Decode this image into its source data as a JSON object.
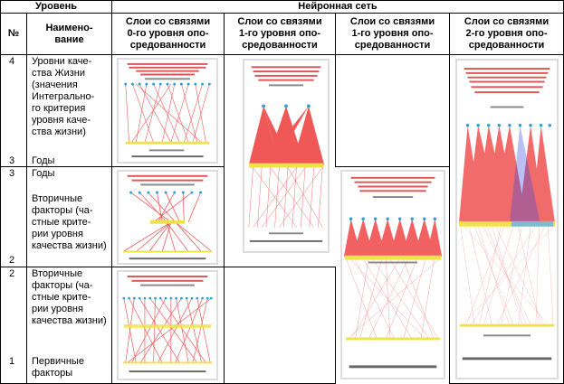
{
  "header": {
    "level": "Уровень",
    "no": "№",
    "name": "Наимено-\nвание",
    "network": "Нейронная сеть",
    "col1": "Слои со связями\n0-го уровня опо-\nсредованности",
    "col2": "Слои со связями\n1-го уровня опо-\nсредованности",
    "col3": "Слои со связями\n1-го уровня опо-\nсредованности",
    "col4": "Слои со связями\n2-го уровня опо-\nсредованности"
  },
  "rows": [
    {
      "num_top": "4",
      "num_bottom": "3",
      "name_top": "Уровни каче-\nства Жизни\n(значения\nИнтегрально-\nго критерия\nуровня каче-\nства жизни)",
      "name_bottom": "Годы"
    },
    {
      "num_top": "3",
      "num_bottom": "2",
      "name_top": "Годы",
      "name_bottom": "Вторичные\nфакторы (ча-\nстные крите-\nрии уровня\nкачества жизни)"
    },
    {
      "num_top": "2",
      "num_bottom": "1",
      "name_top": "Вторичные\nфакторы (ча-\nстные крите-\nрии уровня\nкачества жизни)",
      "name_bottom": "Первичные\nфакторы"
    }
  ],
  "colors": {
    "links": "#ee3a3a",
    "nodes_top": "#2aa0d8",
    "nodes_mid": "#f2e24a",
    "blue_links": "#3a4ae0"
  }
}
